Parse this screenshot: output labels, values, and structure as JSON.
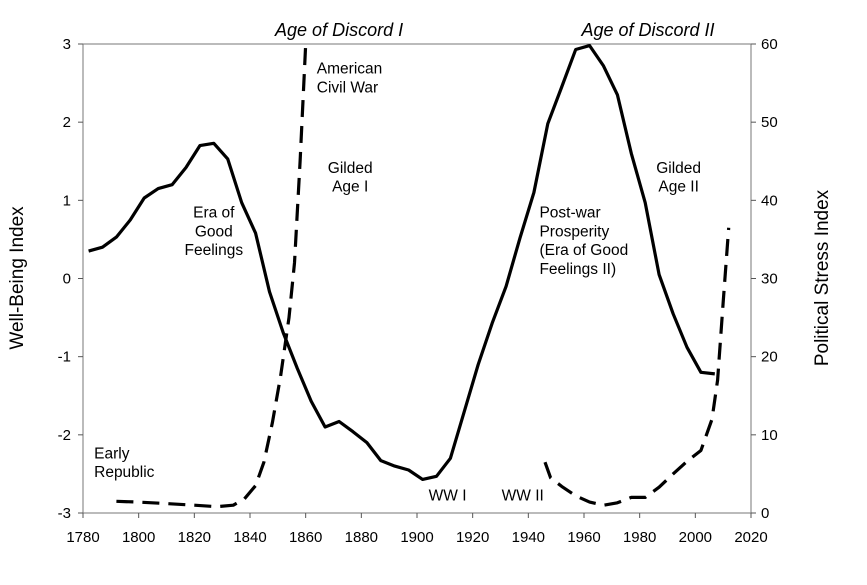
{
  "chart_data": {
    "type": "line",
    "title": "",
    "xlabel": "",
    "ylabel": "Well-Being Index",
    "y2label": "Political Stress Index",
    "xlim": [
      1780,
      2020
    ],
    "ylim": [
      -3,
      3
    ],
    "y2lim": [
      0,
      60
    ],
    "x_ticks": [
      "1780",
      "1800",
      "1820",
      "1840",
      "1860",
      "1880",
      "1900",
      "1920",
      "1940",
      "1960",
      "1980",
      "2000",
      "2020"
    ],
    "y_ticks": [
      "-3",
      "-2",
      "-1",
      "0",
      "1",
      "2",
      "3"
    ],
    "y2_ticks": [
      "0",
      "10",
      "20",
      "30",
      "40",
      "50",
      "60"
    ],
    "grid": false,
    "legend": "none",
    "series": [
      {
        "axis": "left",
        "style": "solid",
        "color": "#000000",
        "points": [
          [
            1782,
            0.35
          ],
          [
            1787,
            0.4
          ],
          [
            1792,
            0.53
          ],
          [
            1797,
            0.75
          ],
          [
            1802,
            1.03
          ],
          [
            1807,
            1.15
          ],
          [
            1812,
            1.2
          ],
          [
            1817,
            1.42
          ],
          [
            1822,
            1.7
          ],
          [
            1827,
            1.73
          ],
          [
            1832,
            1.53
          ],
          [
            1837,
            0.97
          ],
          [
            1842,
            0.58
          ],
          [
            1847,
            -0.17
          ],
          [
            1852,
            -0.7
          ],
          [
            1857,
            -1.15
          ],
          [
            1862,
            -1.57
          ],
          [
            1867,
            -1.9
          ],
          [
            1872,
            -1.83
          ],
          [
            1877,
            -1.96
          ],
          [
            1882,
            -2.1
          ],
          [
            1887,
            -2.33
          ],
          [
            1892,
            -2.4
          ],
          [
            1897,
            -2.45
          ],
          [
            1902,
            -2.57
          ],
          [
            1907,
            -2.53
          ],
          [
            1912,
            -2.3
          ],
          [
            1917,
            -1.7
          ],
          [
            1922,
            -1.1
          ],
          [
            1927,
            -0.57
          ],
          [
            1932,
            -0.1
          ],
          [
            1937,
            0.52
          ],
          [
            1942,
            1.1
          ],
          [
            1947,
            1.98
          ],
          [
            1952,
            2.45
          ],
          [
            1957,
            2.93
          ],
          [
            1962,
            2.98
          ],
          [
            1967,
            2.72
          ],
          [
            1972,
            2.35
          ],
          [
            1977,
            1.6
          ],
          [
            1982,
            0.97
          ],
          [
            1987,
            0.05
          ],
          [
            1992,
            -0.45
          ],
          [
            1997,
            -0.88
          ],
          [
            2002,
            -1.2
          ],
          [
            2007,
            -1.22
          ]
        ]
      },
      {
        "axis": "right",
        "style": "dashed",
        "color": "#000000",
        "points": [
          [
            1792,
            1.5
          ],
          [
            1800,
            1.4
          ],
          [
            1810,
            1.2
          ],
          [
            1820,
            1.0
          ],
          [
            1828,
            0.8
          ],
          [
            1834,
            1.0
          ],
          [
            1838,
            1.8
          ],
          [
            1842,
            3.5
          ],
          [
            1845,
            6.5
          ],
          [
            1848,
            11.5
          ],
          [
            1851,
            17.5
          ],
          [
            1854,
            25.0
          ],
          [
            1856,
            32.0
          ],
          [
            1858,
            45.0
          ],
          [
            1860,
            60.0
          ]
        ]
      },
      {
        "axis": "right",
        "style": "dashed",
        "color": "#000000",
        "points": [
          [
            1946,
            6.5
          ],
          [
            1948,
            4.5
          ],
          [
            1952,
            3.4
          ],
          [
            1957,
            2.2
          ],
          [
            1962,
            1.4
          ],
          [
            1967,
            1.0
          ],
          [
            1972,
            1.3
          ],
          [
            1977,
            2.0
          ],
          [
            1982,
            2.0
          ],
          [
            1987,
            3.3
          ],
          [
            1992,
            5.0
          ],
          [
            1997,
            6.6
          ],
          [
            2002,
            8.0
          ],
          [
            2006,
            12.0
          ],
          [
            2008,
            17.0
          ],
          [
            2010,
            27.0
          ],
          [
            2012,
            36.5
          ]
        ]
      }
    ],
    "annotations": [
      {
        "text": "Age of Discord I",
        "x": 1872,
        "y": 3.0,
        "kind": "era",
        "anchor": "middle"
      },
      {
        "text": "Age of Discord II",
        "x": 1983,
        "y": 3.0,
        "kind": "era",
        "anchor": "middle"
      },
      {
        "text": "American",
        "x": 1864,
        "y": 2.62,
        "kind": "label",
        "anchor": "start"
      },
      {
        "text": "Civil War",
        "x": 1864,
        "y": 2.38,
        "kind": "label",
        "anchor": "start"
      },
      {
        "text": "Gilded",
        "x": 1876,
        "y": 1.35,
        "kind": "label",
        "anchor": "middle"
      },
      {
        "text": "Age I",
        "x": 1876,
        "y": 1.11,
        "kind": "label",
        "anchor": "middle"
      },
      {
        "text": "Era of",
        "x": 1827,
        "y": 0.78,
        "kind": "label",
        "anchor": "middle"
      },
      {
        "text": "Good",
        "x": 1827,
        "y": 0.54,
        "kind": "label",
        "anchor": "middle"
      },
      {
        "text": "Feelings",
        "x": 1827,
        "y": 0.3,
        "kind": "label",
        "anchor": "middle"
      },
      {
        "text": "Gilded",
        "x": 1994,
        "y": 1.35,
        "kind": "label",
        "anchor": "middle"
      },
      {
        "text": "Age II",
        "x": 1994,
        "y": 1.11,
        "kind": "label",
        "anchor": "middle"
      },
      {
        "text": "Post-war",
        "x": 1944,
        "y": 0.78,
        "kind": "label",
        "anchor": "start"
      },
      {
        "text": "Prosperity",
        "x": 1944,
        "y": 0.54,
        "kind": "label",
        "anchor": "start"
      },
      {
        "text": "(Era of Good",
        "x": 1944,
        "y": 0.3,
        "kind": "label",
        "anchor": "start"
      },
      {
        "text": "Feelings II)",
        "x": 1944,
        "y": 0.06,
        "kind": "label",
        "anchor": "start"
      },
      {
        "text": "Early",
        "x": 1784,
        "y": -2.3,
        "kind": "label",
        "anchor": "start"
      },
      {
        "text": "Republic",
        "x": 1784,
        "y": -2.54,
        "kind": "label",
        "anchor": "start"
      },
      {
        "text": "WW I",
        "x": 1911,
        "y": -2.84,
        "kind": "label",
        "anchor": "middle"
      },
      {
        "text": "WW II",
        "x": 1938,
        "y": -2.84,
        "kind": "label",
        "anchor": "middle"
      }
    ]
  }
}
